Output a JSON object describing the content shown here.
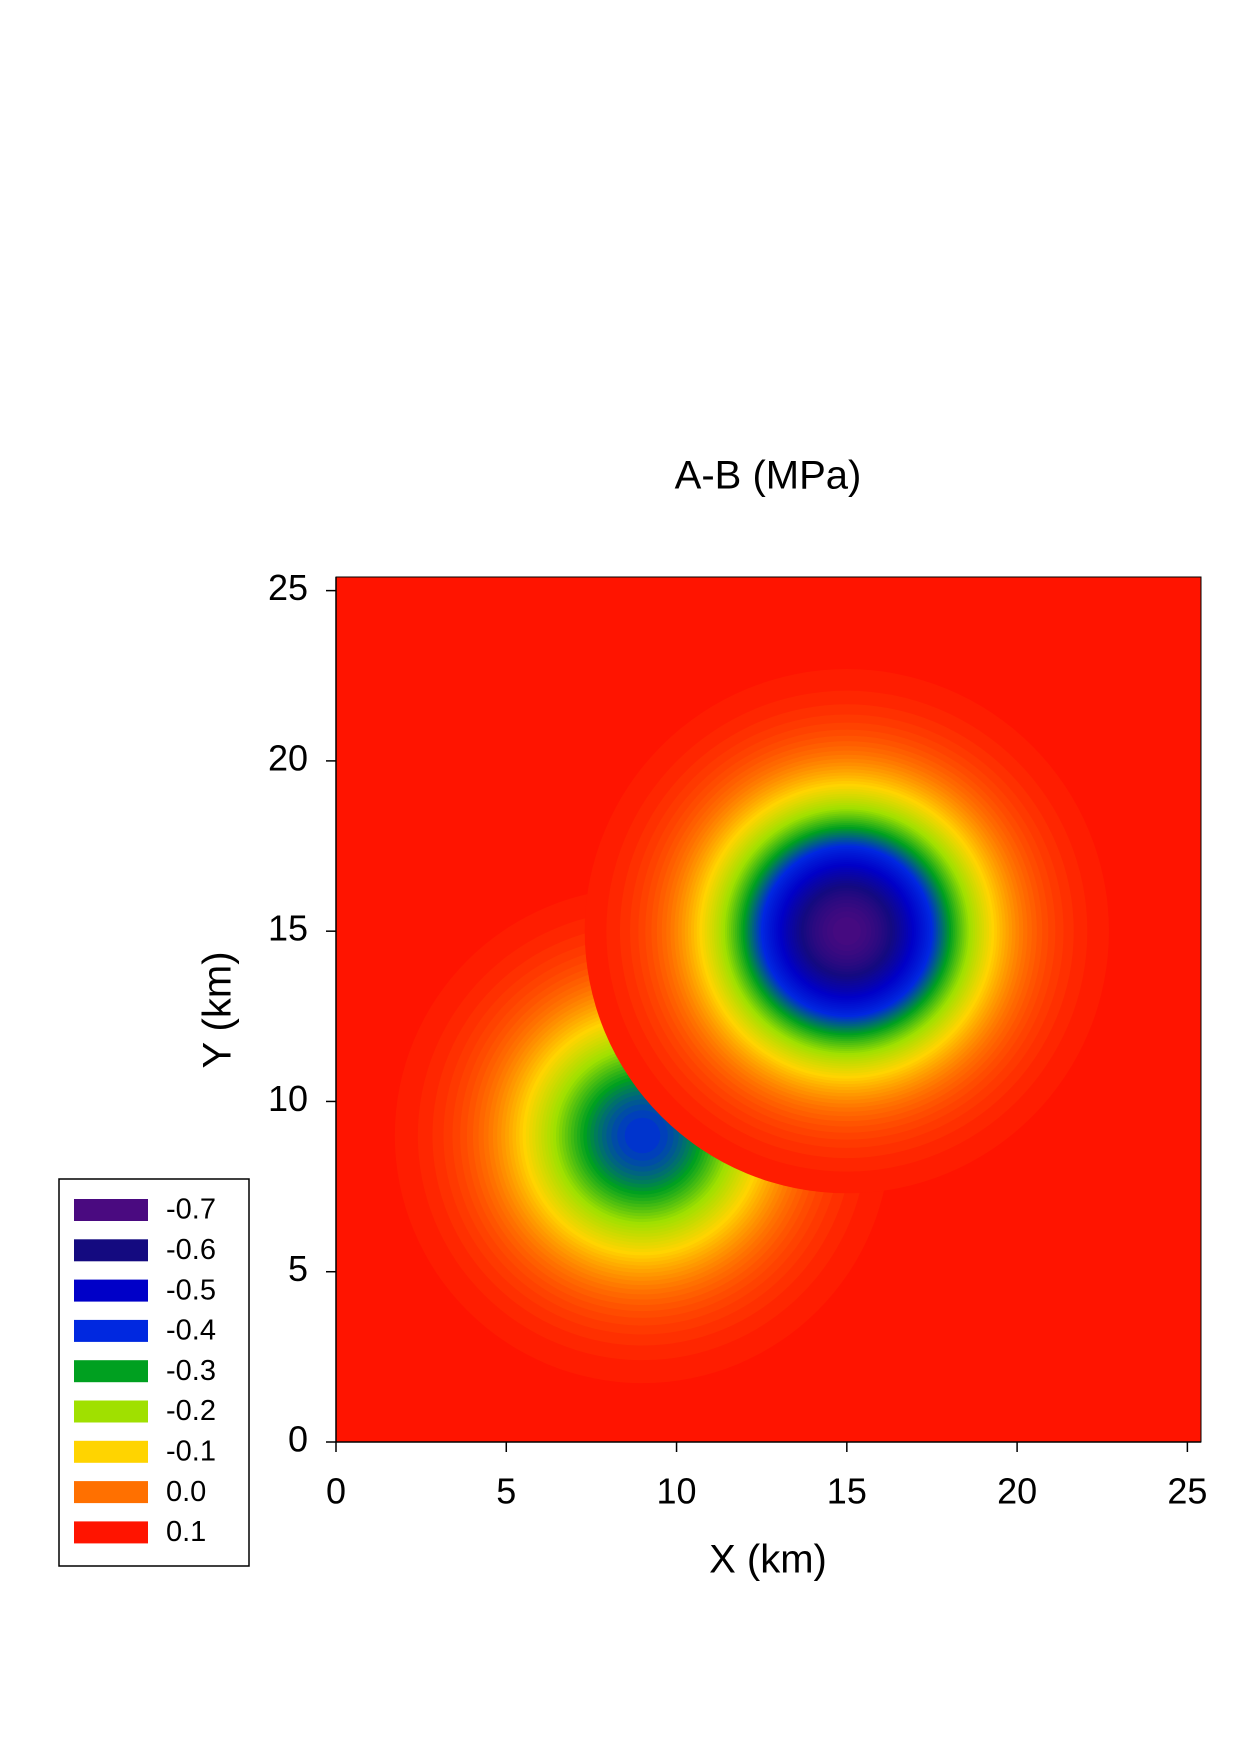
{
  "chart_data": {
    "type": "contour",
    "title": "A-B (MPa)",
    "x_label": "X (km)",
    "y_label": "Y (km)",
    "x": [
      9,
      15
    ],
    "y": [
      9,
      15
    ],
    "values": [
      -0.4,
      -0.7
    ],
    "xlim": [
      0,
      25.4
    ],
    "ylim": [
      0,
      25.4
    ],
    "xticks": [
      0,
      5,
      10,
      15,
      20,
      25
    ],
    "yticks": [
      0,
      5,
      10,
      15,
      20,
      25
    ],
    "levels": [
      -0.7,
      -0.6,
      -0.5,
      -0.4,
      -0.3,
      -0.2,
      -0.1,
      {
        "value": 0.0,
        "label": "0.0"
      },
      0.1
    ],
    "level_colors": [
      "#4a0a80",
      "#140a80",
      "#0000c8",
      "#0028e0",
      "#00a020",
      "#a0e000",
      "#ffd400",
      "#ff7000",
      "#ff1400"
    ]
  }
}
